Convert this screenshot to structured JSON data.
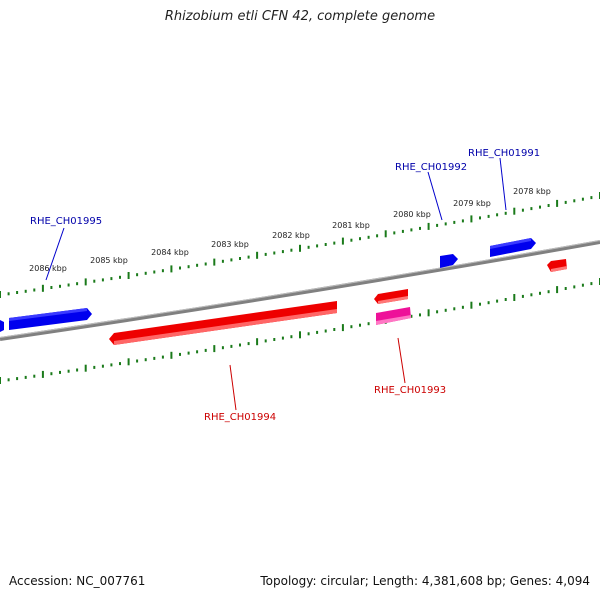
{
  "title": "Rhizobium etli CFN 42, complete genome",
  "footer": {
    "accession": "Accession: NC_007761",
    "summary": "Topology: circular; Length: 4,381,608 bp; Genes: 4,094"
  },
  "colors": {
    "forward_gene": "#0000ee",
    "reverse_gene": "#ee0000",
    "highlight_gene": "#ee1199",
    "tick": "#1a7a1a",
    "backbone": "#808080"
  },
  "kbp_labels": [
    "2086 kbp",
    "2085 kbp",
    "2084 kbp",
    "2083 kbp",
    "2082 kbp",
    "2081 kbp",
    "2080 kbp",
    "2079 kbp",
    "2078 kbp"
  ],
  "gene_labels": {
    "g1995": "RHE_CH01995",
    "g1994": "RHE_CH01994",
    "g1993": "RHE_CH01993",
    "g1992": "RHE_CH01992",
    "g1991": "RHE_CH01991"
  }
}
